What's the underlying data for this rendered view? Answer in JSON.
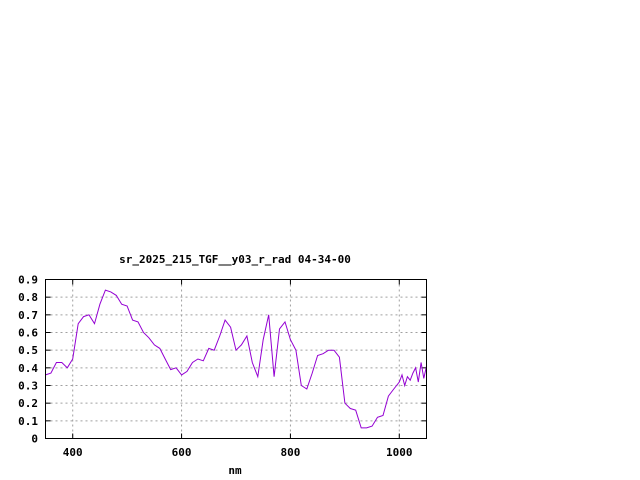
{
  "chart_data": {
    "type": "line",
    "title": "sr_2025_215_TGF__y03_r_rad 04-34-00",
    "xlabel": "nm",
    "ylabel": "",
    "xlim": [
      350,
      1050
    ],
    "ylim": [
      0,
      0.9
    ],
    "xticks": [
      400,
      600,
      800,
      1000
    ],
    "yticks": [
      0,
      0.1,
      0.2,
      0.3,
      0.4,
      0.5,
      0.6,
      0.7,
      0.8,
      0.9
    ],
    "ytick_labels": [
      "0",
      "0.1",
      "0.2",
      "0.3",
      "0.4",
      "0.5",
      "0.6",
      "0.7",
      "0.8",
      "0.9"
    ],
    "grid": true,
    "legend": "none",
    "series_color": "#9400d3",
    "series": [
      {
        "x": [
          350,
          360,
          370,
          380,
          390,
          400,
          410,
          420,
          430,
          440,
          450,
          460,
          470,
          480,
          490,
          500,
          510,
          520,
          530,
          540,
          550,
          560,
          570,
          580,
          590,
          600,
          610,
          620,
          630,
          640,
          650,
          660,
          670,
          680,
          690,
          700,
          710,
          720,
          730,
          740,
          750,
          760,
          770,
          780,
          790,
          800,
          810,
          820,
          830,
          840,
          850,
          860,
          870,
          880,
          890,
          900,
          910,
          920,
          930,
          940,
          950,
          960,
          970,
          980,
          990,
          1000,
          1005,
          1010,
          1015,
          1020,
          1025,
          1030,
          1035,
          1040,
          1045,
          1050
        ],
        "y": [
          0.36,
          0.37,
          0.43,
          0.43,
          0.4,
          0.45,
          0.65,
          0.69,
          0.7,
          0.65,
          0.76,
          0.84,
          0.83,
          0.81,
          0.76,
          0.75,
          0.67,
          0.66,
          0.6,
          0.57,
          0.53,
          0.51,
          0.45,
          0.39,
          0.4,
          0.36,
          0.38,
          0.43,
          0.45,
          0.44,
          0.51,
          0.5,
          0.58,
          0.67,
          0.63,
          0.5,
          0.53,
          0.58,
          0.43,
          0.35,
          0.56,
          0.7,
          0.35,
          0.62,
          0.66,
          0.56,
          0.5,
          0.3,
          0.28,
          0.37,
          0.47,
          0.48,
          0.5,
          0.5,
          0.46,
          0.2,
          0.17,
          0.16,
          0.06,
          0.06,
          0.07,
          0.12,
          0.13,
          0.24,
          0.28,
          0.32,
          0.36,
          0.3,
          0.35,
          0.33,
          0.37,
          0.4,
          0.32,
          0.43,
          0.34,
          0.41
        ]
      }
    ]
  }
}
